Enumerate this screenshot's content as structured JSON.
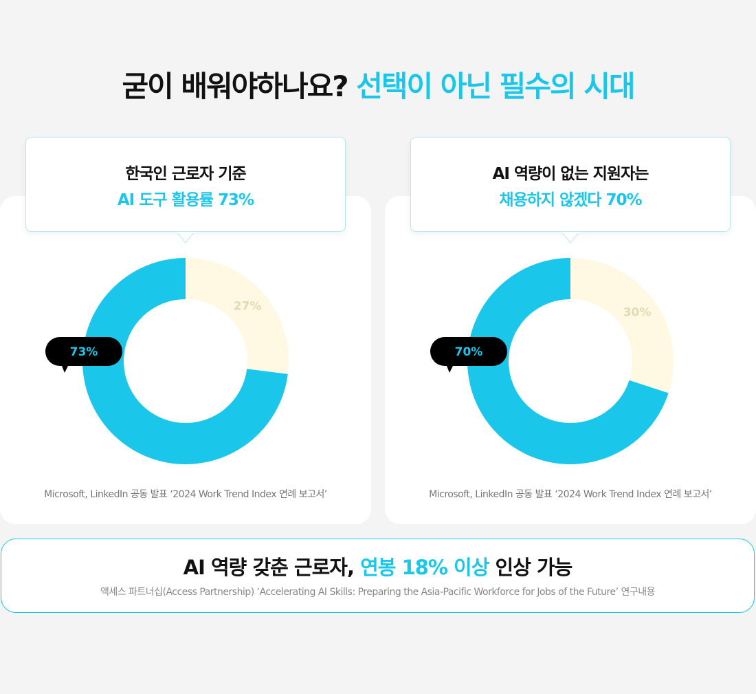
{
  "title": {
    "lead": "굳이 배워야하나요?",
    "highlight": "선택이 아닌 필수의 시대"
  },
  "chart_data": [
    {
      "type": "donut",
      "title": "한국인 근로자 기준",
      "subtitle": "AI 도구 활용률 73%",
      "values": [
        73,
        27
      ],
      "value_labels": [
        "73%",
        "27%"
      ],
      "colors": [
        "#1ac6ea",
        "#fff9e3"
      ],
      "source": "Microsoft, LinkedIn 공동 발표 ‘2024 Work Trend Index 연례 보고서’"
    },
    {
      "type": "donut",
      "title": "AI 역량이 없는 지원자는",
      "subtitle": "채용하지 않겠다 70%",
      "values": [
        70,
        30
      ],
      "value_labels": [
        "70%",
        "30%"
      ],
      "colors": [
        "#1ac6ea",
        "#fff9e3"
      ],
      "source": "Microsoft, LinkedIn 공동 발표 ‘2024 Work Trend Index 연례 보고서’"
    }
  ],
  "banner": {
    "lead": "AI 역량 갖춘 근로자,",
    "highlight": "연봉 18% 이상",
    "tail": "인상 가능",
    "source": "액세스 파트너십(Access Partnership) ‘Accelerating AI Skills: Preparing the Asia-Pacific Workforce for Jobs of the Future’ 연구내용"
  }
}
